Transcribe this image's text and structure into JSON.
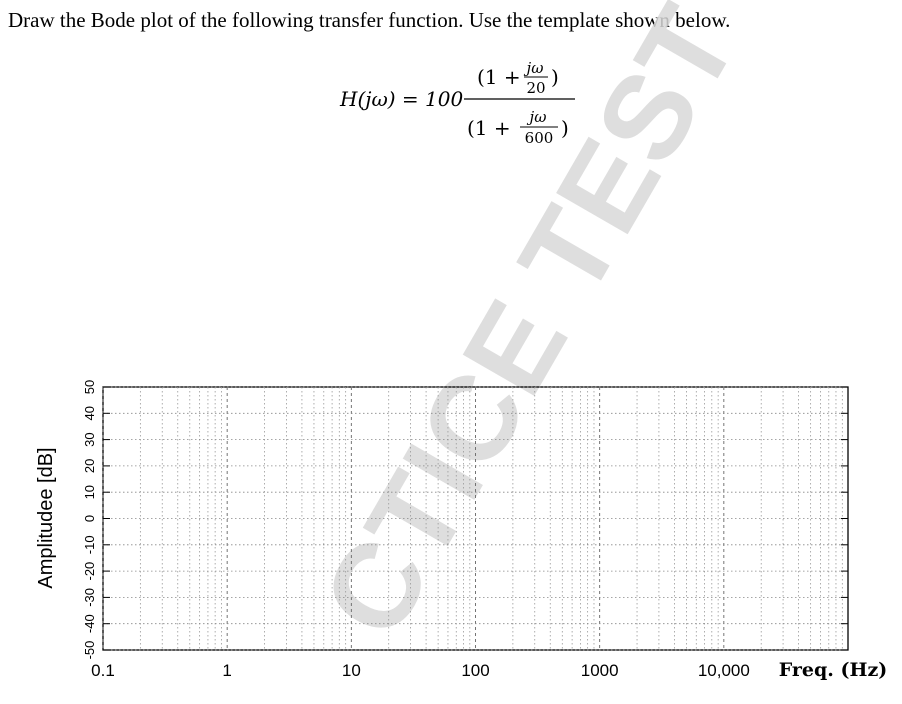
{
  "question": "Draw the Bode plot of the following transfer function. Use the template shown below.",
  "formula": {
    "lhs": "H(jω) = 100",
    "open": "(1 +",
    "close": ")",
    "num_top": "jω",
    "num_bottom": "20",
    "den_top": "jω",
    "den_bottom": "600"
  },
  "watermark": "CTICE TEST",
  "plot": {
    "y_label": "Amplitudee [dB]",
    "x_label": "Freq. (Hz)",
    "xlim": [
      0.1,
      100000
    ],
    "xticks": [
      0.1,
      1,
      10,
      100,
      1000,
      {
        "value": 10000,
        "label": "10,000"
      }
    ],
    "ylim": [
      -50,
      50
    ],
    "yticks": [
      -50,
      -40,
      -30,
      -20,
      -10,
      0,
      10,
      20,
      30,
      40,
      50
    ]
  }
}
